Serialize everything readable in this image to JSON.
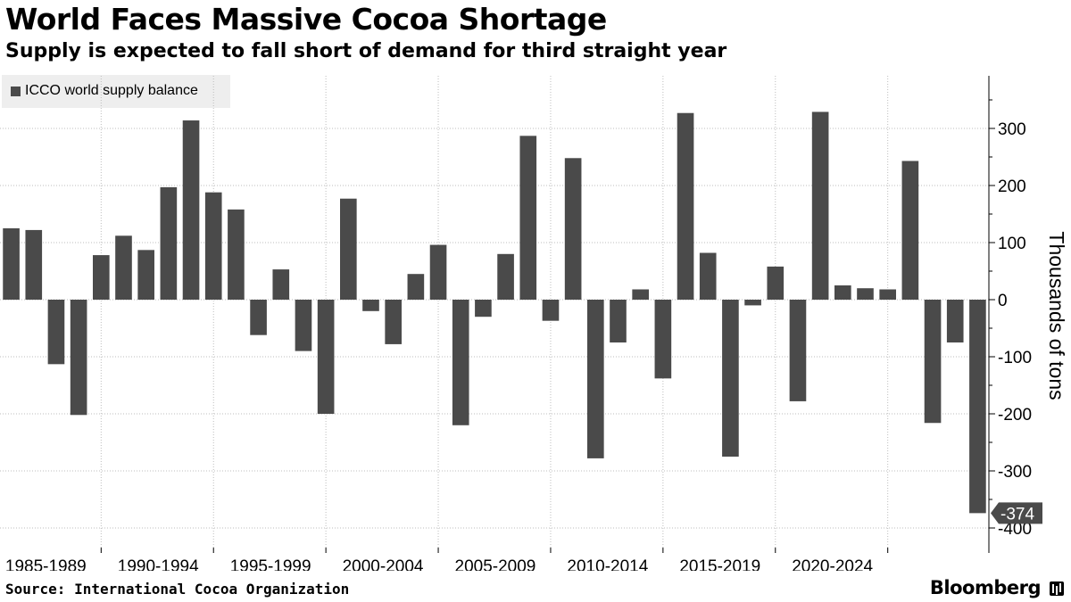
{
  "header": {
    "title": "World Faces Massive Cocoa Shortage",
    "subtitle": "Supply is expected to fall short of demand for third straight year"
  },
  "footer": {
    "source": "Source: International Cocoa Organization",
    "brand": "Bloomberg"
  },
  "colors": {
    "bar": "#4a4a4a",
    "grid": "#bdbdbd",
    "callout_bg": "#4a4a4a",
    "callout_text": "#ffffff"
  },
  "chart_data": {
    "type": "bar",
    "title": "World Faces Massive Cocoa Shortage",
    "subtitle": "Supply is expected to fall short of demand for third straight year",
    "ylabel": "Thousands of tons",
    "ylim": [
      -420,
      395
    ],
    "yticks": [
      -400,
      -300,
      -200,
      -100,
      0,
      100,
      200,
      300
    ],
    "y_axis_side": "right",
    "grid": true,
    "legend_position": "top-left",
    "x_tick_labels": [
      "1985-1989",
      "1990-1994",
      "1995-1999",
      "2000-2004",
      "2005-2009",
      "2010-2014",
      "2015-2019",
      "2020-2024"
    ],
    "series": [
      {
        "name": "ICCO world supply balance",
        "values": [
          125,
          122,
          -113,
          -202,
          78,
          112,
          87,
          197,
          314,
          188,
          158,
          -62,
          53,
          -90,
          -200,
          177,
          -20,
          -78,
          45,
          96,
          -220,
          -30,
          80,
          287,
          -37,
          248,
          -278,
          -75,
          18,
          -138,
          327,
          82,
          -275,
          -10,
          58,
          -178,
          329,
          25,
          20,
          18,
          243,
          -216,
          -75,
          -374
        ]
      }
    ],
    "annotations": [
      {
        "text": "-374",
        "value": -374
      }
    ]
  }
}
